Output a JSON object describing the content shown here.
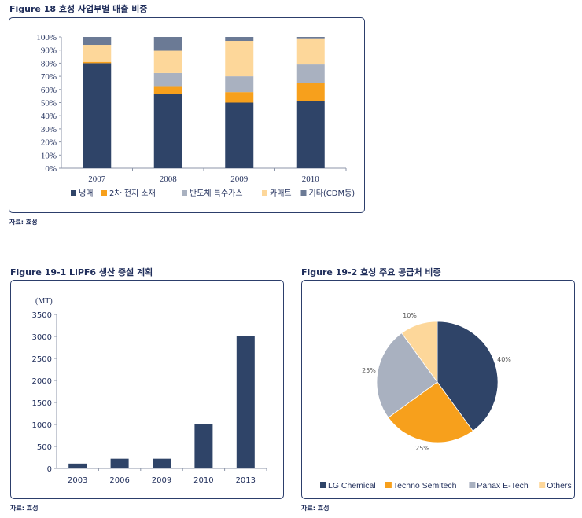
{
  "fig18": {
    "title": "Figure 18   효성 사업부별 매출 비중",
    "source": "자료: 효성"
  },
  "fig19_1": {
    "title": "Figure 19-1   LiPF6 생산 증설 계획",
    "source": "자료: 효성",
    "unit": "(MT)"
  },
  "fig19_2": {
    "title": "Figure 19-2   효성 주요 공급처 비중",
    "source": "자료: 효성"
  },
  "chart_data": [
    {
      "type": "bar",
      "stacked": true,
      "title": "효성 사업부별 매출 비중",
      "categories": [
        "2007",
        "2008",
        "2009",
        "2010"
      ],
      "ylim": [
        0,
        100
      ],
      "yticks": [
        "0%",
        "10%",
        "20%",
        "30%",
        "40%",
        "50%",
        "60%",
        "70%",
        "80%",
        "90%",
        "100%"
      ],
      "legend": "bottom",
      "series": [
        {
          "name": "냉매",
          "color": "#2f4468",
          "values": [
            80,
            56.5,
            50,
            51.5
          ]
        },
        {
          "name": "2차 전지 소재",
          "color": "#f7a01c",
          "values": [
            1,
            5.5,
            8,
            13.5
          ]
        },
        {
          "name": "반도체 특수가스",
          "color": "#a9b1c0",
          "values": [
            0,
            10.5,
            12,
            14
          ]
        },
        {
          "name": "카매트",
          "color": "#fdd79a",
          "values": [
            13,
            17,
            27,
            20
          ]
        },
        {
          "name": "기타(CDM등)",
          "color": "#6b7a95",
          "values": [
            6,
            10.5,
            3,
            1
          ]
        }
      ]
    },
    {
      "type": "bar",
      "title": "LiPF6 생산 증설 계획",
      "ylabel": "(MT)",
      "categories": [
        "2003",
        "2006",
        "2009",
        "2010",
        "2013"
      ],
      "values": [
        110,
        220,
        220,
        1000,
        3000
      ],
      "ylim": [
        0,
        3500
      ],
      "yticks": [
        "0",
        "500",
        "1000",
        "1500",
        "2000",
        "2500",
        "3000",
        "3500"
      ],
      "color": "#2f4468"
    },
    {
      "type": "pie",
      "title": "효성 주요 공급처 비중",
      "legend": "bottom",
      "slices": [
        {
          "name": "LG Chemical",
          "value": 40,
          "label": "40%",
          "color": "#2f4468"
        },
        {
          "name": "Techno Semitech",
          "value": 25,
          "label": "25%",
          "color": "#f7a01c"
        },
        {
          "name": "Panax E-Tech",
          "value": 25,
          "label": "25%",
          "color": "#a9b1c0"
        },
        {
          "name": "Others",
          "value": 10,
          "label": "10%",
          "color": "#fdd79a"
        }
      ]
    }
  ]
}
